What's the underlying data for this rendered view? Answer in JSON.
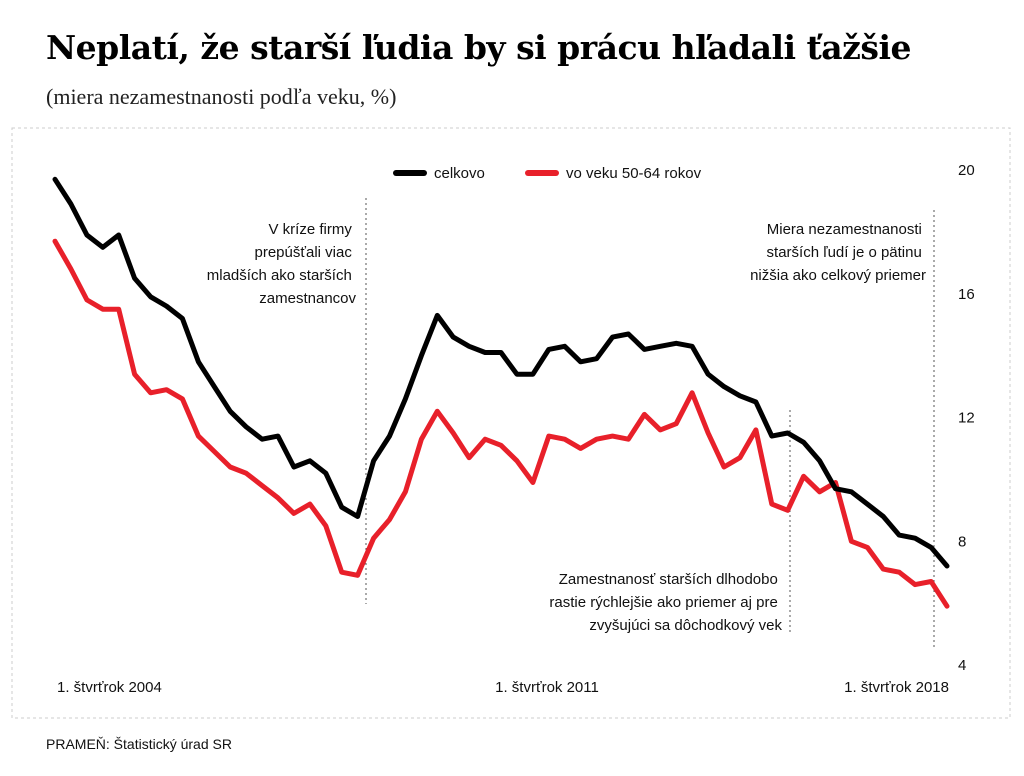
{
  "title": "Neplatí, že starší ľudia by si prácu hľadali ťažšie",
  "subtitle": "(miera nezamestnanosti podľa veku, %)",
  "source": "PRAMEŇ: Štatistický úrad SR",
  "colors": {
    "total": "#000000",
    "older": "#e8202a",
    "frame": "#cccccc",
    "guide": "#555555"
  },
  "chart_data": {
    "type": "line",
    "title": "Neplatí, že starší ľudia by si prácu hľadali ťažšie",
    "subtitle": "(miera nezamestnanosti podľa veku, %)",
    "xlabel": "",
    "ylabel": "%",
    "ylim": [
      4,
      20
    ],
    "yticks": [
      4,
      8,
      12,
      16,
      20
    ],
    "y_axis_side": "right",
    "grid": false,
    "legend_position": "top",
    "x_tick_labels": [
      {
        "quarter_index": 0,
        "label": "1. štvrťrok 2004"
      },
      {
        "quarter_index": 28,
        "label": "1. štvrťrok 2011"
      },
      {
        "quarter_index": 56,
        "label": "1. štvrťrok 2018"
      }
    ],
    "series": [
      {
        "name": "celkovo",
        "color": "#000000",
        "values": [
          19.7,
          18.9,
          17.9,
          17.5,
          17.9,
          16.5,
          15.9,
          15.6,
          15.2,
          13.8,
          13.0,
          12.2,
          11.7,
          11.3,
          11.4,
          10.4,
          10.6,
          10.2,
          9.1,
          8.8,
          10.6,
          11.4,
          12.6,
          14.0,
          15.3,
          14.6,
          14.3,
          14.1,
          14.1,
          13.4,
          13.4,
          14.2,
          14.3,
          13.8,
          13.9,
          14.6,
          14.7,
          14.2,
          14.3,
          14.4,
          14.3,
          13.4,
          13.0,
          12.7,
          12.5,
          11.4,
          11.5,
          11.2,
          10.6,
          9.7,
          9.6,
          9.2,
          8.8,
          8.2,
          8.1,
          7.8,
          7.2
        ]
      },
      {
        "name": "vo veku 50-64 rokov",
        "color": "#e8202a",
        "values": [
          17.7,
          16.8,
          15.8,
          15.5,
          15.5,
          13.4,
          12.8,
          12.9,
          12.6,
          11.4,
          10.9,
          10.4,
          10.2,
          9.8,
          9.4,
          8.9,
          9.2,
          8.5,
          7.0,
          6.9,
          8.1,
          8.7,
          9.6,
          11.3,
          12.2,
          11.5,
          10.7,
          11.3,
          11.1,
          10.6,
          9.9,
          11.4,
          11.3,
          11.0,
          11.3,
          11.4,
          11.3,
          12.1,
          11.6,
          11.8,
          12.8,
          11.5,
          10.4,
          10.7,
          11.6,
          9.2,
          9.0,
          10.1,
          9.6,
          9.9,
          8.0,
          7.8,
          7.1,
          7.0,
          6.6,
          6.7,
          5.9
        ]
      }
    ],
    "annotations": [
      {
        "id": "crisis",
        "lines": [
          "V kríze firmy",
          "prepúšťali viac",
          "mladších ako starších",
          "zamestnancov"
        ]
      },
      {
        "id": "older_rate",
        "lines": [
          "Miera nezamestnanosti",
          "starších ľudí je o pätinu",
          "nižšia ako celkový priemer"
        ]
      },
      {
        "id": "older_employment",
        "lines": [
          "Zamestnanosť starších dlhodobo",
          "rastie rýchlejšie ako priemer aj pre",
          "zvyšujúci sa dôchodkový vek"
        ]
      }
    ]
  }
}
